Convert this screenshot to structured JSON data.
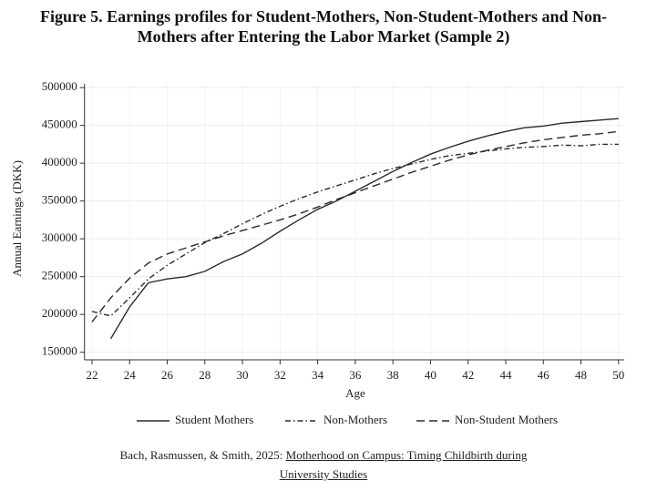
{
  "chart_data": {
    "type": "line",
    "title": [
      "Figure 5. Earnings profiles for Student-Mothers, Non-Student-Mothers and Non-",
      "Mothers after Entering the Labor Market (Sample 2)"
    ],
    "xlabel": "Age",
    "ylabel": "Annual Earnings (DKK)",
    "x": [
      22,
      23,
      24,
      25,
      26,
      27,
      28,
      29,
      30,
      31,
      32,
      33,
      34,
      35,
      36,
      37,
      38,
      39,
      40,
      41,
      42,
      43,
      44,
      45,
      46,
      47,
      48,
      49,
      50
    ],
    "series": [
      {
        "name": "Student Mothers",
        "color": "#2b2b2b",
        "dash": "solid",
        "values": [
          null,
          168000,
          210000,
          242000,
          247000,
          250000,
          257000,
          270000,
          280000,
          294000,
          310000,
          325000,
          339000,
          350000,
          363000,
          376000,
          389000,
          401000,
          412000,
          421000,
          429000,
          436000,
          442000,
          447000,
          449000,
          453000,
          455000,
          457000,
          459000
        ]
      },
      {
        "name": "Non-Mothers",
        "color": "#2b2b2b",
        "dash": "dashdot",
        "values": [
          204000,
          198000,
          222000,
          247000,
          265000,
          280000,
          295000,
          307000,
          320000,
          332000,
          343000,
          353000,
          362000,
          370000,
          378000,
          386000,
          393000,
          399000,
          405000,
          410000,
          413000,
          416000,
          419000,
          421000,
          422000,
          424000,
          423000,
          425000,
          425000
        ]
      },
      {
        "name": "Non-Student Mothers",
        "color": "#2b2b2b",
        "dash": "dash",
        "values": [
          190000,
          222000,
          248000,
          268000,
          280000,
          288000,
          296000,
          304000,
          311000,
          318000,
          325000,
          333000,
          342000,
          352000,
          361000,
          370000,
          379000,
          388000,
          396000,
          404000,
          411000,
          417000,
          422000,
          427000,
          431000,
          434000,
          437000,
          439000,
          442000
        ]
      }
    ],
    "xlim": [
      21.6,
      50.3
    ],
    "xticks": [
      22,
      24,
      26,
      28,
      30,
      32,
      34,
      36,
      38,
      40,
      42,
      44,
      46,
      48,
      50
    ],
    "ylim": [
      140000,
      505000
    ],
    "yticks": [
      150000,
      200000,
      250000,
      300000,
      350000,
      400000,
      450000,
      500000
    ],
    "grid": true,
    "legend": "bottom",
    "source": {
      "text": "Bach, Rasmussen, & Smith, 2025:",
      "link": "Motherhood on Campus: Timing Childbirth during University Studies"
    }
  }
}
